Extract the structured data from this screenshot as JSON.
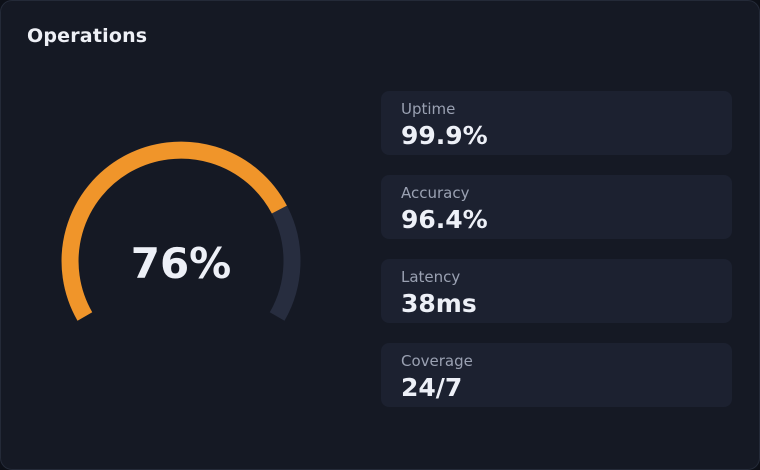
{
  "panel": {
    "title": "Operations"
  },
  "gauge": {
    "value": 76,
    "display": "76%",
    "colors": {
      "fill": "#f0952a",
      "track": "#272d3f"
    }
  },
  "metrics": [
    {
      "label": "Uptime",
      "value": "99.9%"
    },
    {
      "label": "Accuracy",
      "value": "96.4%"
    },
    {
      "label": "Latency",
      "value": "38ms"
    },
    {
      "label": "Coverage",
      "value": "24/7"
    }
  ]
}
